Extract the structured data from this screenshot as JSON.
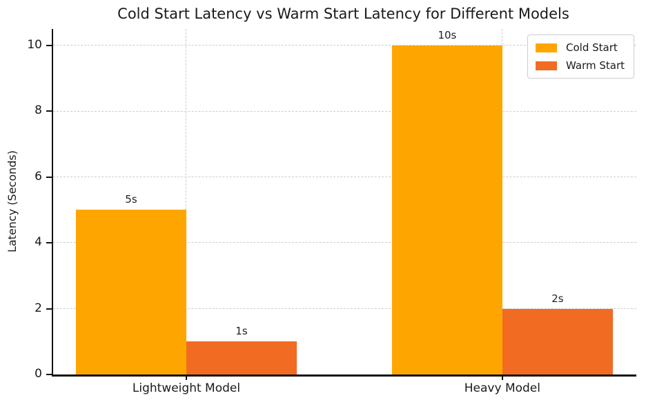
{
  "chart_data": {
    "type": "bar",
    "title": "Cold Start Latency vs Warm Start Latency for Different Models",
    "xlabel": "",
    "ylabel": "Latency (Seconds)",
    "categories": [
      "Lightweight Model",
      "Heavy Model"
    ],
    "series": [
      {
        "name": "Cold Start",
        "color": "#FFA500",
        "values": [
          5,
          10
        ],
        "bar_labels": [
          "5s",
          "10s"
        ]
      },
      {
        "name": "Warm Start",
        "color": "#F26B22",
        "values": [
          1,
          2
        ],
        "bar_labels": [
          "1s",
          "2s"
        ]
      }
    ],
    "ylim": [
      0,
      10.5
    ],
    "yticks": [
      0,
      2,
      4,
      6,
      8,
      10
    ],
    "grid": "dashed, horizontal at y-ticks and vertical at category centers",
    "legend_position": "upper right"
  }
}
